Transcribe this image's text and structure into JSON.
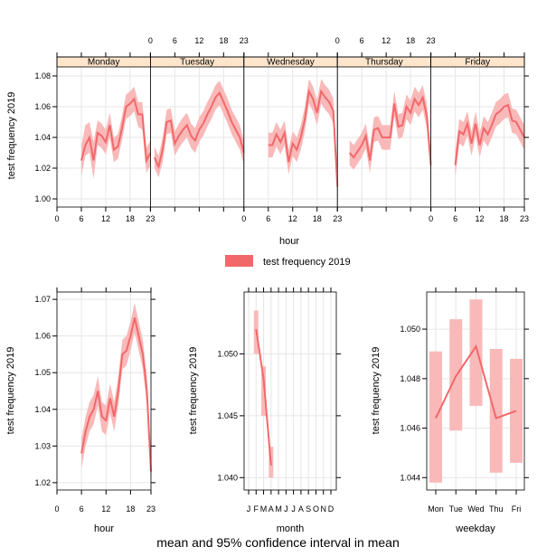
{
  "caption": "mean and 95% confidence interval in mean",
  "colors": {
    "line": "#F2686A",
    "band": "#F9B9B9",
    "strip": "#FFE5CC",
    "grid": "#E6E6E6"
  },
  "chart_data": [
    {
      "type": "line",
      "layout": "panels",
      "panels": [
        "Monday",
        "Tuesday",
        "Wednesday",
        "Thursday",
        "Friday"
      ],
      "xlabel": "hour",
      "ylabel": "test frequency 2019",
      "xlim": [
        0,
        23
      ],
      "ylim": [
        1.0,
        1.08
      ],
      "xticks": [
        0,
        6,
        12,
        18,
        23
      ],
      "yticks": [
        "1.00",
        "1.02",
        "1.04",
        "1.06",
        "1.08"
      ],
      "legend": {
        "label": "test frequency 2019",
        "position": "bottom"
      },
      "series": [
        {
          "panel": "Monday",
          "x": [
            6,
            7,
            8,
            9,
            10,
            11,
            12,
            13,
            14,
            15,
            16,
            17,
            18,
            19,
            20,
            21,
            22,
            23
          ],
          "y": [
            1.025,
            1.035,
            1.04,
            1.025,
            1.043,
            1.041,
            1.037,
            1.048,
            1.032,
            1.034,
            1.046,
            1.06,
            1.062,
            1.065,
            1.055,
            1.055,
            1.025,
            1.03
          ],
          "lower": [
            1.015,
            1.028,
            1.03,
            1.013,
            1.035,
            1.033,
            1.029,
            1.04,
            1.024,
            1.026,
            1.038,
            1.052,
            1.054,
            1.057,
            1.047,
            1.045,
            1.017,
            1.022
          ],
          "upper": [
            1.035,
            1.048,
            1.05,
            1.037,
            1.051,
            1.049,
            1.045,
            1.056,
            1.04,
            1.042,
            1.054,
            1.068,
            1.07,
            1.073,
            1.063,
            1.063,
            1.033,
            1.038
          ]
        },
        {
          "panel": "Tuesday",
          "x": [
            1,
            2,
            3,
            4,
            5,
            6,
            7,
            8,
            9,
            10,
            11,
            12,
            13,
            14,
            15,
            16,
            17,
            18,
            19,
            20,
            21,
            22,
            23
          ],
          "y": [
            1.027,
            1.021,
            1.032,
            1.05,
            1.051,
            1.036,
            1.041,
            1.045,
            1.048,
            1.041,
            1.038,
            1.045,
            1.049,
            1.055,
            1.06,
            1.066,
            1.069,
            1.063,
            1.057,
            1.05,
            1.045,
            1.04,
            1.03
          ],
          "lower": [
            1.02,
            1.014,
            1.024,
            1.042,
            1.043,
            1.028,
            1.033,
            1.037,
            1.04,
            1.033,
            1.03,
            1.037,
            1.041,
            1.047,
            1.052,
            1.058,
            1.061,
            1.055,
            1.049,
            1.042,
            1.037,
            1.032,
            1.022
          ],
          "upper": [
            1.034,
            1.028,
            1.04,
            1.058,
            1.059,
            1.044,
            1.049,
            1.053,
            1.056,
            1.049,
            1.046,
            1.053,
            1.057,
            1.063,
            1.068,
            1.074,
            1.077,
            1.071,
            1.065,
            1.058,
            1.053,
            1.048,
            1.038
          ]
        },
        {
          "panel": "Wednesday",
          "x": [
            6,
            7,
            8,
            9,
            10,
            11,
            12,
            13,
            14,
            15,
            16,
            17,
            18,
            19,
            20,
            21,
            22,
            23
          ],
          "y": [
            1.035,
            1.035,
            1.042,
            1.037,
            1.043,
            1.024,
            1.036,
            1.032,
            1.04,
            1.052,
            1.07,
            1.065,
            1.056,
            1.07,
            1.066,
            1.063,
            1.057,
            1.008
          ],
          "lower": [
            1.027,
            1.027,
            1.034,
            1.029,
            1.035,
            1.016,
            1.028,
            1.024,
            1.032,
            1.044,
            1.062,
            1.057,
            1.048,
            1.062,
            1.058,
            1.055,
            1.049,
            1.0
          ],
          "upper": [
            1.043,
            1.043,
            1.05,
            1.045,
            1.051,
            1.032,
            1.044,
            1.04,
            1.048,
            1.06,
            1.078,
            1.073,
            1.064,
            1.078,
            1.074,
            1.071,
            1.065,
            1.016
          ]
        },
        {
          "panel": "Thursday",
          "x": [
            3,
            4,
            5,
            6,
            7,
            8,
            9,
            10,
            11,
            12,
            13,
            14,
            15,
            16,
            17,
            18,
            19,
            20,
            21,
            22,
            23
          ],
          "y": [
            1.03,
            1.027,
            1.031,
            1.035,
            1.041,
            1.025,
            1.045,
            1.046,
            1.04,
            1.04,
            1.04,
            1.062,
            1.047,
            1.048,
            1.06,
            1.056,
            1.065,
            1.061,
            1.066,
            1.054,
            1.022
          ],
          "lower": [
            1.022,
            1.019,
            1.023,
            1.027,
            1.033,
            1.017,
            1.037,
            1.038,
            1.032,
            1.032,
            1.032,
            1.054,
            1.039,
            1.04,
            1.052,
            1.048,
            1.057,
            1.053,
            1.058,
            1.046,
            1.014
          ],
          "upper": [
            1.038,
            1.035,
            1.039,
            1.043,
            1.049,
            1.033,
            1.053,
            1.054,
            1.048,
            1.048,
            1.048,
            1.07,
            1.055,
            1.056,
            1.068,
            1.064,
            1.073,
            1.069,
            1.074,
            1.062,
            1.03
          ]
        },
        {
          "panel": "Friday",
          "x": [
            6,
            7,
            8,
            9,
            10,
            11,
            12,
            13,
            14,
            15,
            16,
            17,
            18,
            19,
            20,
            21,
            22,
            23
          ],
          "y": [
            1.022,
            1.044,
            1.042,
            1.049,
            1.036,
            1.049,
            1.035,
            1.046,
            1.042,
            1.048,
            1.055,
            1.057,
            1.06,
            1.061,
            1.051,
            1.05,
            1.045,
            1.04
          ],
          "lower": [
            1.014,
            1.036,
            1.034,
            1.041,
            1.028,
            1.041,
            1.027,
            1.038,
            1.034,
            1.04,
            1.047,
            1.049,
            1.052,
            1.053,
            1.043,
            1.042,
            1.037,
            1.032
          ],
          "upper": [
            1.03,
            1.052,
            1.05,
            1.057,
            1.044,
            1.057,
            1.043,
            1.054,
            1.05,
            1.056,
            1.063,
            1.065,
            1.068,
            1.069,
            1.059,
            1.058,
            1.053,
            1.048
          ]
        }
      ]
    },
    {
      "type": "line",
      "xlabel": "hour",
      "ylabel": "test frequency 2019",
      "xlim": [
        0,
        23
      ],
      "ylim": [
        1.018,
        1.072
      ],
      "xticks": [
        0,
        6,
        12,
        18,
        23
      ],
      "yticks": [
        "1.02",
        "1.03",
        "1.04",
        "1.05",
        "1.06",
        "1.07"
      ],
      "series": [
        {
          "name": "test frequency 2019",
          "x": [
            6,
            7,
            8,
            9,
            10,
            11,
            12,
            13,
            14,
            15,
            16,
            17,
            18,
            19,
            20,
            21,
            22,
            23
          ],
          "y": [
            1.028,
            1.034,
            1.038,
            1.04,
            1.045,
            1.038,
            1.037,
            1.043,
            1.038,
            1.045,
            1.055,
            1.056,
            1.06,
            1.065,
            1.06,
            1.055,
            1.045,
            1.023
          ],
          "lower": [
            1.024,
            1.03,
            1.034,
            1.036,
            1.041,
            1.034,
            1.033,
            1.039,
            1.034,
            1.041,
            1.051,
            1.052,
            1.056,
            1.061,
            1.056,
            1.051,
            1.041,
            1.019
          ],
          "upper": [
            1.032,
            1.038,
            1.042,
            1.044,
            1.049,
            1.042,
            1.041,
            1.047,
            1.042,
            1.049,
            1.059,
            1.06,
            1.064,
            1.069,
            1.064,
            1.059,
            1.049,
            1.027
          ]
        }
      ]
    },
    {
      "type": "line",
      "xlabel": "month",
      "ylabel": "test frequency 2019",
      "categories": [
        "J",
        "F",
        "M",
        "A",
        "M",
        "J",
        "J",
        "A",
        "S",
        "O",
        "N",
        "D"
      ],
      "ylim": [
        1.039,
        1.055
      ],
      "yticks": [
        "1.040",
        "1.045",
        "1.050"
      ],
      "series": [
        {
          "name": "test frequency 2019",
          "x": [
            2,
            3,
            4
          ],
          "y": [
            1.052,
            1.048,
            1.041
          ],
          "lower": [
            1.05,
            1.045,
            1.04
          ],
          "upper": [
            1.0535,
            1.049,
            1.0425
          ]
        }
      ]
    },
    {
      "type": "line",
      "xlabel": "weekday",
      "ylabel": "test frequency 2019",
      "categories": [
        "Mon",
        "Tue",
        "Wed",
        "Thu",
        "Fri"
      ],
      "ylim": [
        1.0435,
        1.0515
      ],
      "yticks": [
        "1.044",
        "1.046",
        "1.048",
        "1.050"
      ],
      "series": [
        {
          "name": "test frequency 2019",
          "values": [
            1.0464,
            1.0481,
            1.0493,
            1.0464,
            1.0467
          ],
          "lower": [
            1.0438,
            1.0459,
            1.0469,
            1.0442,
            1.0446
          ],
          "upper": [
            1.0491,
            1.0504,
            1.0512,
            1.0492,
            1.0488
          ]
        }
      ]
    }
  ]
}
